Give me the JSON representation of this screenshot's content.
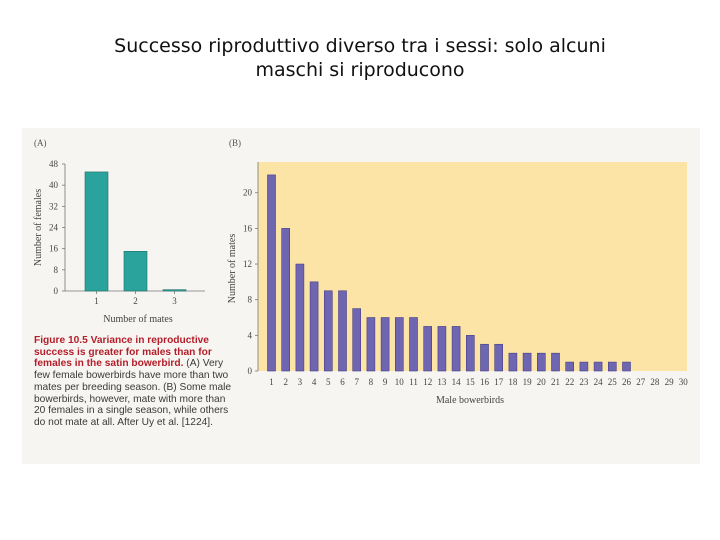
{
  "slide": {
    "title_line1": "Successo riproduttivo diverso tra i sessi: solo alcuni",
    "title_line2": "maschi si riproducono"
  },
  "caption": {
    "figure_label": "Figure 10.5",
    "headline": "Variance in reproductive success is greater for males than for females in the satin bowerbird.",
    "body": "(A) Very few female bowerbirds have more than two mates per breeding season. (B) Some male bowerbirds, however, mate with more than 20 females in a single season, while others do not mate at all. After Uy et al. [1224]."
  },
  "colors": {
    "panel_a_bar": "#2aa39c",
    "panel_b_bar": "#6f66b2",
    "panel_b_background": "#fbe4a6",
    "caption_red": "#b41e2a"
  },
  "chart_data": [
    {
      "panel": "(A)",
      "type": "bar",
      "xlabel": "Number of mates",
      "ylabel": "Number of females",
      "categories": [
        "1",
        "2",
        "3"
      ],
      "values": [
        45,
        15,
        0.5
      ],
      "ylim": [
        0,
        48
      ],
      "yticks": [
        "0",
        "8",
        "16",
        "24",
        "32",
        "40",
        "48"
      ],
      "grid": false
    },
    {
      "panel": "(B)",
      "type": "bar",
      "xlabel": "Male bowerbirds",
      "ylabel": "Number of mates",
      "categories": [
        "1",
        "2",
        "3",
        "4",
        "5",
        "6",
        "7",
        "8",
        "9",
        "10",
        "11",
        "12",
        "13",
        "14",
        "15",
        "16",
        "17",
        "18",
        "19",
        "20",
        "21",
        "22",
        "23",
        "24",
        "25",
        "26",
        "27",
        "28",
        "29",
        "30"
      ],
      "values": [
        22,
        16,
        12,
        10,
        9,
        9,
        7,
        6,
        6,
        6,
        6,
        5,
        5,
        5,
        4,
        3,
        3,
        2,
        2,
        2,
        2,
        1,
        1,
        1,
        1,
        1,
        0,
        0,
        0,
        0
      ],
      "ylim": [
        0,
        23
      ],
      "yticks": [
        "0",
        "4",
        "8",
        "12",
        "16",
        "20"
      ],
      "grid": false
    }
  ]
}
